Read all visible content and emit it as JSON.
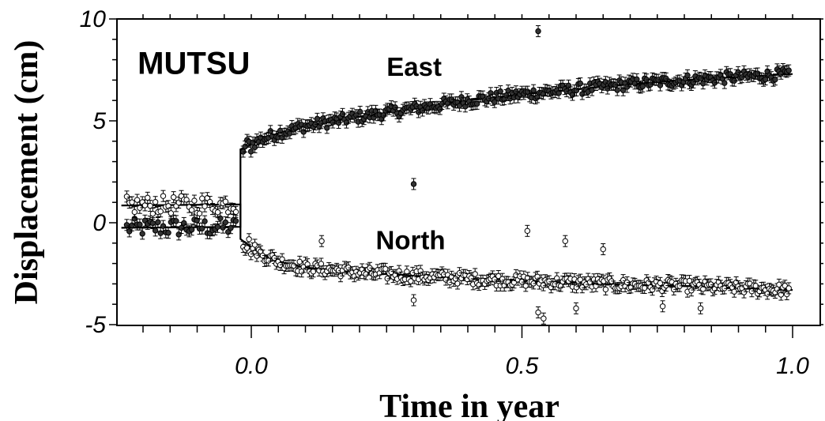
{
  "chart_data": {
    "type": "scatter",
    "title": "",
    "xlabel": "Time in year",
    "ylabel": "Displacement (cm)",
    "xlim": [
      -0.25,
      1.02
    ],
    "ylim": [
      -5,
      10
    ],
    "x_ticks": [
      {
        "value": 0.0,
        "label": "0.0"
      },
      {
        "value": 0.5,
        "label": "0.5"
      },
      {
        "value": 1.0,
        "label": "1.0"
      }
    ],
    "y_ticks": [
      {
        "value": 10,
        "label": "10"
      },
      {
        "value": 5,
        "label": "5"
      },
      {
        "value": 0,
        "label": "0"
      },
      {
        "value": -5,
        "label": "-5"
      }
    ],
    "grid": false,
    "annotations": [
      {
        "text": "MUTSU",
        "x": -0.21,
        "y": 7.3,
        "style": "big"
      },
      {
        "text": "East",
        "x": 0.25,
        "y": 7.2,
        "style": "normal"
      },
      {
        "text": "North",
        "x": 0.23,
        "y": -1.3,
        "style": "normal"
      }
    ],
    "series": [
      {
        "marker": "filled-circle",
        "fit_line": [
          [
            -0.24,
            -0.25
          ],
          [
            -0.02,
            -0.2
          ],
          [
            -0.02,
            3.6
          ],
          [
            0.0,
            3.85
          ],
          [
            0.02,
            4.1
          ],
          [
            0.05,
            4.4
          ],
          [
            0.1,
            4.75
          ],
          [
            0.2,
            5.2
          ],
          [
            0.3,
            5.6
          ],
          [
            0.4,
            6.0
          ],
          [
            0.5,
            6.3
          ],
          [
            0.6,
            6.55
          ],
          [
            0.7,
            6.8
          ],
          [
            0.8,
            7.0
          ],
          [
            0.9,
            7.15
          ],
          [
            1.0,
            7.3
          ]
        ],
        "outliers": [
          [
            0.53,
            9.4
          ],
          [
            0.3,
            1.9
          ]
        ]
      },
      {
        "marker": "open-circle",
        "fit_line": [
          [
            -0.24,
            0.85
          ],
          [
            -0.02,
            0.9
          ],
          [
            -0.02,
            -0.8
          ],
          [
            0.0,
            -1.2
          ],
          [
            0.02,
            -1.55
          ],
          [
            0.05,
            -1.9
          ],
          [
            0.1,
            -2.2
          ],
          [
            0.2,
            -2.45
          ],
          [
            0.3,
            -2.6
          ],
          [
            0.4,
            -2.75
          ],
          [
            0.5,
            -2.85
          ],
          [
            0.6,
            -2.95
          ],
          [
            0.7,
            -3.05
          ],
          [
            0.8,
            -3.1
          ],
          [
            0.9,
            -3.2
          ],
          [
            1.0,
            -3.3
          ]
        ],
        "outliers": [
          [
            0.51,
            -0.4
          ],
          [
            0.13,
            -0.9
          ],
          [
            0.3,
            -3.8
          ],
          [
            0.58,
            -0.9
          ],
          [
            0.53,
            -4.4
          ],
          [
            0.54,
            -4.7
          ],
          [
            0.6,
            -4.2
          ],
          [
            0.65,
            -1.3
          ],
          [
            0.76,
            -4.1
          ],
          [
            0.83,
            -4.2
          ]
        ]
      }
    ]
  }
}
